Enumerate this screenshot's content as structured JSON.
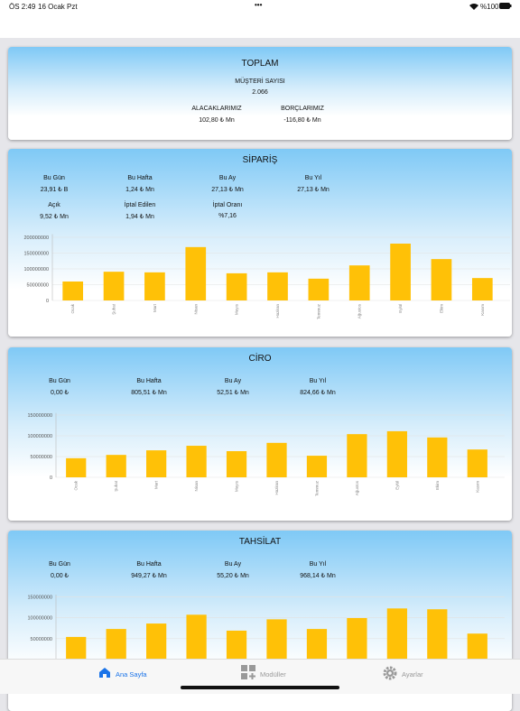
{
  "status_bar": {
    "time": "ÖS 2:49",
    "date": "16 Ocak Pzt",
    "battery": "%100"
  },
  "summary": {
    "title": "TOPLAM",
    "customers_label": "MÜŞTERİ SAYISI",
    "customers_value": "2.066",
    "receivables_label": "ALACAKLARIMIZ",
    "receivables_value": "102,80 ₺ Mn",
    "payables_label": "BORÇLARIMIZ",
    "payables_value": "-116,80 ₺ Mn"
  },
  "panels": [
    {
      "title": "SİPARİŞ",
      "stats": [
        {
          "label": "Bu Gün",
          "value": "23,91 ₺ B"
        },
        {
          "label": "Bu Hafta",
          "value": "1,24 ₺ Mn"
        },
        {
          "label": "Bu Ay",
          "value": "27,13 ₺ Mn"
        },
        {
          "label": "Bu Yıl",
          "value": "27,13 ₺ Mn"
        },
        {
          "label": "Açık",
          "value": "9,52 ₺ Mn"
        },
        {
          "label": "İptal Edilen",
          "value": "1,94 ₺ Mn"
        },
        {
          "label": "İptal Oranı",
          "value": "%7,16"
        }
      ],
      "chart_data": {
        "type": "bar",
        "categories": [
          "Ocak",
          "Şubat",
          "Mart",
          "Nisan",
          "Mayıs",
          "Haziran",
          "Temmuz",
          "Ağustos",
          "Eylül",
          "Ekim",
          "Kasım"
        ],
        "values": [
          60000000,
          91000000,
          89000000,
          169000000,
          86000000,
          89000000,
          69000000,
          111000000,
          180000000,
          131000000,
          71000000
        ],
        "color": "#ffc107",
        "ylim": [
          0,
          210000000
        ],
        "yticks": [
          0,
          50000000,
          100000000,
          150000000,
          200000000
        ],
        "grid": true
      }
    },
    {
      "title": "CİRO",
      "stats": [
        {
          "label": "Bu Gün",
          "value": "0,00 ₺"
        },
        {
          "label": "Bu Hafta",
          "value": "805,51 ₺ Mn"
        },
        {
          "label": "Bu Ay",
          "value": "52,51 ₺ Mn"
        },
        {
          "label": "Bu Yıl",
          "value": "824,66 ₺ Mn"
        }
      ],
      "chart_data": {
        "type": "bar",
        "categories": [
          "Ocak",
          "Şubat",
          "Mart",
          "Nisan",
          "Mayıs",
          "Haziran",
          "Temmuz",
          "Ağustos",
          "Eylül",
          "Ekim",
          "Kasım"
        ],
        "values": [
          46000000,
          54000000,
          65000000,
          76000000,
          63000000,
          83000000,
          52000000,
          104000000,
          111000000,
          96000000,
          67000000
        ],
        "color": "#ffc107",
        "ylim": [
          0,
          155000000
        ],
        "yticks": [
          0,
          50000000,
          100000000,
          150000000
        ],
        "grid": true
      }
    },
    {
      "title": "TAHSİLAT",
      "stats": [
        {
          "label": "Bu Gün",
          "value": "0,00 ₺"
        },
        {
          "label": "Bu Hafta",
          "value": "949,27 ₺ Mn"
        },
        {
          "label": "Bu Ay",
          "value": "55,20 ₺ Mn"
        },
        {
          "label": "Bu Yıl",
          "value": "968,14 ₺ Mn"
        }
      ],
      "chart_data": {
        "type": "bar",
        "values": [
          54000000,
          73000000,
          86000000,
          107000000,
          69000000,
          96000000,
          73000000,
          99000000,
          122000000,
          120000000,
          62000000
        ],
        "color": "#ffc107",
        "ylim": [
          0,
          155000000
        ],
        "yticks": [
          50000000,
          100000000,
          150000000
        ],
        "grid": true
      }
    }
  ],
  "tab_bar": {
    "items": [
      "Ana Sayfa",
      "Modüller",
      "Ayarlar"
    ]
  }
}
